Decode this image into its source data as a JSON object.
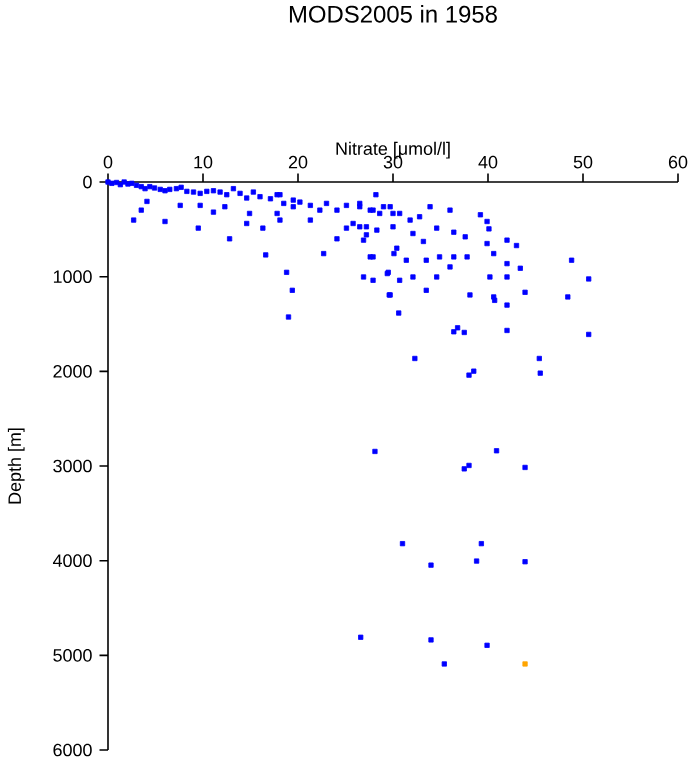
{
  "chart_data": {
    "type": "scatter",
    "title": "MODS2005 in 1958",
    "xlabel": "Nitrate [μmol/l]",
    "ylabel": "Depth [m]",
    "xlim": [
      0,
      60
    ],
    "ylim": [
      6000,
      0
    ],
    "xticks": [
      0,
      10,
      20,
      30,
      40,
      50,
      60
    ],
    "yticks": [
      0,
      1000,
      2000,
      3000,
      4000,
      5000,
      6000
    ],
    "marker": "square",
    "series": [
      {
        "color": "#0000ff",
        "x": [
          0.0,
          0.4,
          0.9,
          1.3,
          1.7,
          2.1,
          2.5,
          3.0,
          3.5,
          3.9,
          4.4,
          4.9,
          5.5,
          6.0,
          6.5,
          7.2,
          7.7,
          8.3,
          9.0,
          9.7,
          10.4,
          11.1,
          11.8,
          12.5,
          13.2,
          13.9,
          14.6,
          15.3,
          16.0,
          17.1,
          17.8,
          18.5,
          19.5,
          21.3,
          22.3,
          23.0,
          24.1,
          25.1,
          26.5,
          27.9,
          29.0,
          30.0,
          2.7,
          3.5,
          6.0,
          4.1,
          7.6,
          9.5,
          11.1,
          12.8,
          14.6,
          16.3,
          16.6,
          17.8,
          18.1,
          19.5,
          21.3,
          18.8,
          19.4,
          22.7,
          24.1,
          25.1,
          25.8,
          26.5,
          27.2,
          27.6,
          27.9,
          29.4,
          29.6,
          30.1,
          18.1,
          20.2,
          14.9,
          12.3,
          9.7,
          28.2,
          26.5,
          27.6,
          28.6,
          29.7,
          30.7,
          31.8,
          32.8,
          33.9,
          36.0,
          39.2,
          39.9,
          40.1,
          27.2,
          28.3,
          30.0,
          32.1,
          33.2,
          34.6,
          36.4,
          37.6,
          39.9,
          42.0,
          43.0,
          26.9,
          27.9,
          30.4,
          31.4,
          33.5,
          34.9,
          36.4,
          37.8,
          40.6,
          42.0,
          43.4,
          48.8,
          50.6,
          26.9,
          29.5,
          30.7,
          32.1,
          33.5,
          34.6,
          36.0,
          38.1,
          40.2,
          40.6,
          42.0,
          43.9,
          48.4,
          29.7,
          19.0,
          30.6,
          40.7,
          42.0,
          36.8,
          36.4,
          37.5,
          42.0,
          50.6,
          32.3,
          38.0,
          38.5,
          45.4,
          45.5,
          28.1,
          37.5,
          38.0,
          40.9,
          43.9,
          31.0,
          39.3,
          34.0,
          38.8,
          43.9,
          26.6,
          34.0,
          39.9,
          35.4
        ],
        "values": [
          0,
          14,
          5,
          28,
          0,
          21,
          14,
          35,
          49,
          70,
          49,
          63,
          78,
          92,
          78,
          70,
          56,
          99,
          106,
          120,
          99,
          92,
          106,
          134,
          70,
          120,
          169,
          106,
          155,
          177,
          134,
          226,
          191,
          247,
          297,
          226,
          297,
          247,
          261,
          297,
          261,
          332,
          402,
          297,
          417,
          205,
          247,
          487,
          318,
          600,
          438,
          487,
          770,
          332,
          402,
          261,
          402,
          954,
          1144,
          756,
          600,
          487,
          438,
          473,
          558,
          791,
          1038,
          967,
          1193,
          756,
          134,
          212,
          332,
          261,
          247,
          134,
          226,
          297,
          332,
          261,
          332,
          402,
          367,
          261,
          297,
          346,
          417,
          495,
          473,
          508,
          473,
          544,
          628,
          487,
          530,
          579,
          650,
          614,
          671,
          614,
          791,
          699,
          826,
          826,
          791,
          791,
          791,
          756,
          862,
          911,
          826,
          1024,
          1003,
          954,
          1038,
          1003,
          1144,
          1003,
          897,
          1193,
          1003,
          1214,
          1003,
          1165,
          1214,
          1193,
          1426,
          1384,
          1250,
          1300,
          1540,
          1582,
          1589,
          1568,
          1610,
          1864,
          2040,
          1998,
          1864,
          2019,
          2846,
          3030,
          2994,
          2839,
          3015,
          3820,
          3820,
          4047,
          4004,
          4011,
          4809,
          4837,
          4894,
          5091
        ]
      },
      {
        "color": "#ffa500",
        "x": [
          43.9
        ],
        "values": [
          5091
        ]
      }
    ]
  }
}
